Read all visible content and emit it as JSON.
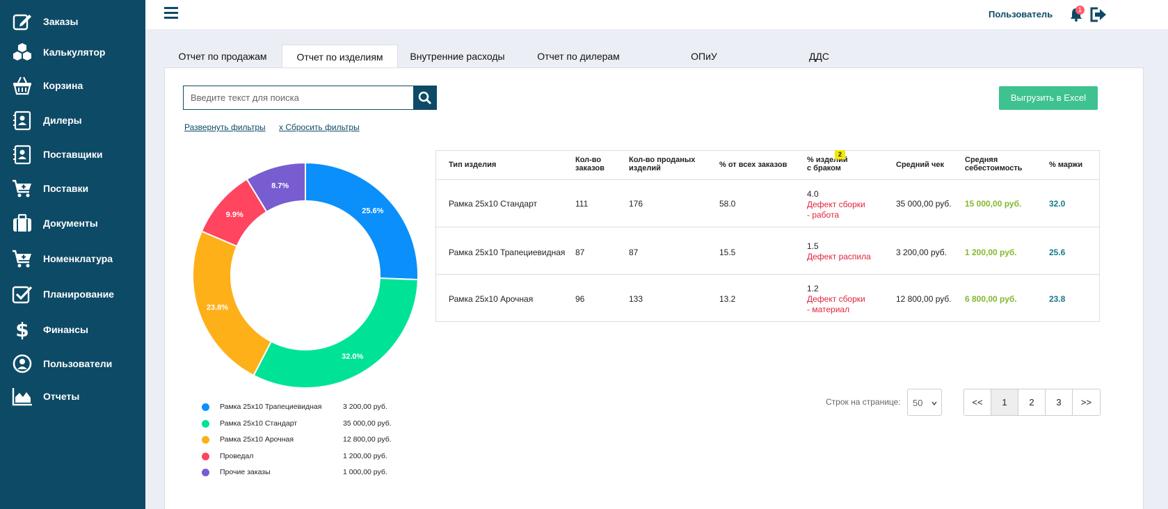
{
  "sidebar": {
    "items": [
      {
        "label": "Заказы",
        "icon": "edit-icon"
      },
      {
        "label": "Калькулятор",
        "icon": "cubes-icon"
      },
      {
        "label": "Корзина",
        "icon": "basket-icon"
      },
      {
        "label": "Дилеры",
        "icon": "contact-book-icon"
      },
      {
        "label": "Поставщики",
        "icon": "contact-book-icon"
      },
      {
        "label": "Поставки",
        "icon": "cart-plus-icon"
      },
      {
        "label": "Документы",
        "icon": "briefcase-icon"
      },
      {
        "label": "Номенклатура",
        "icon": "cart-plus-icon"
      },
      {
        "label": "Планирование",
        "icon": "checkbox-icon"
      },
      {
        "label": "Финансы",
        "icon": "dollar-icon"
      },
      {
        "label": "Пользователи",
        "icon": "user-circle-icon"
      },
      {
        "label": "Отчеты",
        "icon": "area-chart-icon"
      }
    ]
  },
  "header": {
    "user_label": "Пользователь",
    "notification_count": "1"
  },
  "tabs": [
    {
      "label": "Отчет по продажам",
      "active": false
    },
    {
      "label": "Отчет по изделиям",
      "active": true
    },
    {
      "label": "Внутренние расходы",
      "active": false
    },
    {
      "label": "Отчет по дилерам",
      "active": false
    },
    {
      "label": "ОПиУ",
      "active": false
    },
    {
      "label": "ДДС",
      "active": false
    }
  ],
  "search": {
    "placeholder": "Введите текст для поиска",
    "value": ""
  },
  "filters": {
    "expand_label": "Развернуть фильтры",
    "reset_label": "x Сбросить фильтры"
  },
  "export_label": "Выгрузить в Excel",
  "chart_data": {
    "type": "pie",
    "donut": true,
    "slices": [
      {
        "name": "Рамка 25х10 Трапециевидная",
        "value": 25.6,
        "label": "25.6%",
        "amount": "3 200,00 руб.",
        "color": "#0a8ffb"
      },
      {
        "name": "Рамка 25х10 Стандарт",
        "value": 32.0,
        "label": "32.0%",
        "amount": "35 000,00 руб.",
        "color": "#00e396"
      },
      {
        "name": "Рамка 25х10 Арочная",
        "value": 23.8,
        "label": "23.8%",
        "amount": "12 800,00 руб.",
        "color": "#feb019"
      },
      {
        "name": "Проведал",
        "value": 9.9,
        "label": "9.9%",
        "amount": "1 200,00 руб.",
        "color": "#ff4560"
      },
      {
        "name": "Прочие заказы",
        "value": 8.7,
        "label": "8.7%",
        "amount": "1 000,00 руб.",
        "color": "#775dd0"
      }
    ],
    "legend_position": "bottom"
  },
  "table": {
    "headers": {
      "type": "Тип изделия",
      "orders_1": "Кол-во",
      "orders_2": "заказов",
      "sold_1": "Кол-во проданых",
      "sold_2": "изделий",
      "pct_orders": "% от всех заказов",
      "defect_1": "% изделий",
      "defect_2": "с браком",
      "avg_check": "Средний чек",
      "cost_1": "Средняя",
      "cost_2": "себестоимость",
      "margin": "% маржи"
    },
    "defect_badge": "2",
    "rows": [
      {
        "type": "Рамка 25х10 Стандарт",
        "orders": "111",
        "sold": "176",
        "pct": "58.0",
        "defect_pct": "4.0",
        "defect_1": "Дефект сборки",
        "defect_2": "- работа",
        "avg_check": "35 000,00 руб.",
        "cost": "15 000,00 руб.",
        "margin": "32.0"
      },
      {
        "type": "Рамка 25х10 Трапециевидная",
        "orders": "87",
        "sold": "87",
        "pct": "15.5",
        "defect_pct": "1.5",
        "defect_1": "Дефект распила",
        "defect_2": "",
        "avg_check": "3 200,00 руб.",
        "cost": "1 200,00 руб.",
        "margin": "25.6"
      },
      {
        "type": "Рамка 25х10 Арочная",
        "orders": "96",
        "sold": "133",
        "pct": "13.2",
        "defect_pct": "1.2",
        "defect_1": "Дефект сборки",
        "defect_2": "- материал",
        "avg_check": "12 800,00 руб.",
        "cost": "6 800,00 руб.",
        "margin": "23.8"
      }
    ]
  },
  "pagination": {
    "rows_label": "Строк на странице:",
    "rows_value": "50",
    "first": "<<",
    "pages": [
      "1",
      "2",
      "3"
    ],
    "current": "1",
    "last": ">>"
  }
}
